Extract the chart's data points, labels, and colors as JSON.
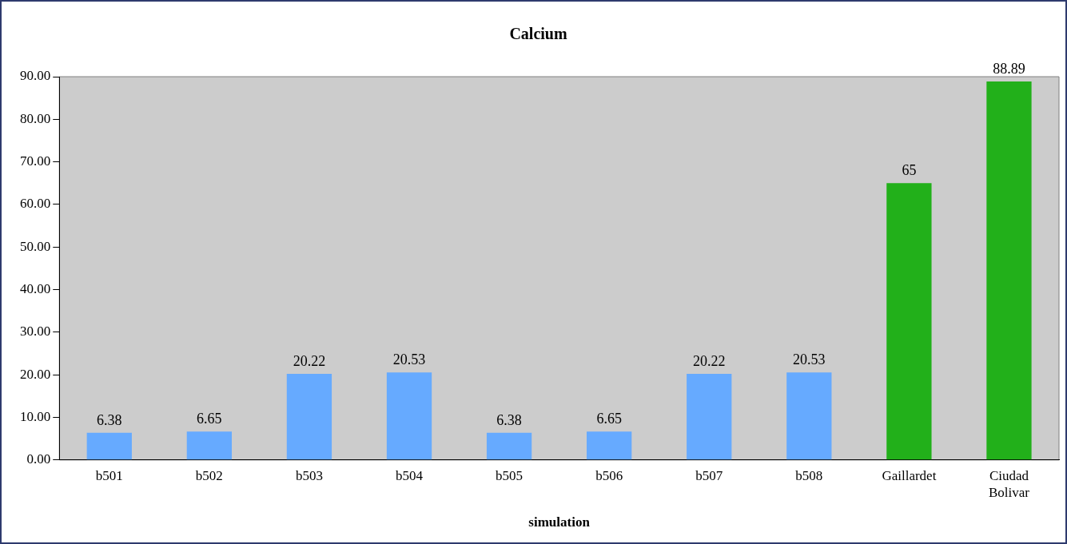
{
  "chart_data": {
    "type": "bar",
    "title": "Calcium",
    "xlabel": "simulation",
    "categories": [
      "b501",
      "b502",
      "b503",
      "b504",
      "b505",
      "b506",
      "b507",
      "b508",
      "Gaillardet",
      "Ciudad Bolivar"
    ],
    "values": [
      6.38,
      6.65,
      20.22,
      20.53,
      6.38,
      6.65,
      20.22,
      20.53,
      65,
      88.89
    ],
    "colors": [
      "#66aaff",
      "#66aaff",
      "#66aaff",
      "#66aaff",
      "#66aaff",
      "#66aaff",
      "#66aaff",
      "#66aaff",
      "#22b01a",
      "#22b01a"
    ],
    "ylim": [
      0,
      90
    ],
    "yticks": [
      {
        "value": 0,
        "label": "0.00"
      },
      {
        "value": 10,
        "label": "10.00"
      },
      {
        "value": 20,
        "label": "20.00"
      },
      {
        "value": 30,
        "label": "30.00"
      },
      {
        "value": 40,
        "label": "40.00"
      },
      {
        "value": 50,
        "label": "50.00"
      },
      {
        "value": 60,
        "label": "60.00"
      },
      {
        "value": 70,
        "label": "70.00"
      },
      {
        "value": 80,
        "label": "80.00"
      },
      {
        "value": 90,
        "label": "90.00"
      }
    ],
    "data_labels": true,
    "grid": false,
    "legend": false
  }
}
